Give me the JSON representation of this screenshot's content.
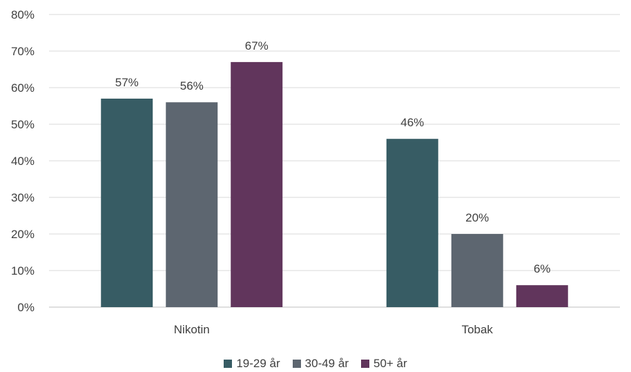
{
  "chart_data": {
    "type": "bar",
    "title": "",
    "xlabel": "",
    "ylabel": "",
    "categories": [
      "Nikotin",
      "Tobak"
    ],
    "series": [
      {
        "name": "19-29 år",
        "values": [
          57,
          46
        ],
        "color": "#375c64"
      },
      {
        "name": "30-49 år",
        "values": [
          56,
          20
        ],
        "color": "#5d6670"
      },
      {
        "name": "50+ år",
        "values": [
          67,
          6
        ],
        "color": "#61355c"
      }
    ],
    "ylim": [
      0,
      80
    ],
    "yticks": [
      0,
      10,
      20,
      30,
      40,
      50,
      60,
      70,
      80
    ],
    "value_format": "percent",
    "grid": true,
    "legend_position": "bottom"
  }
}
